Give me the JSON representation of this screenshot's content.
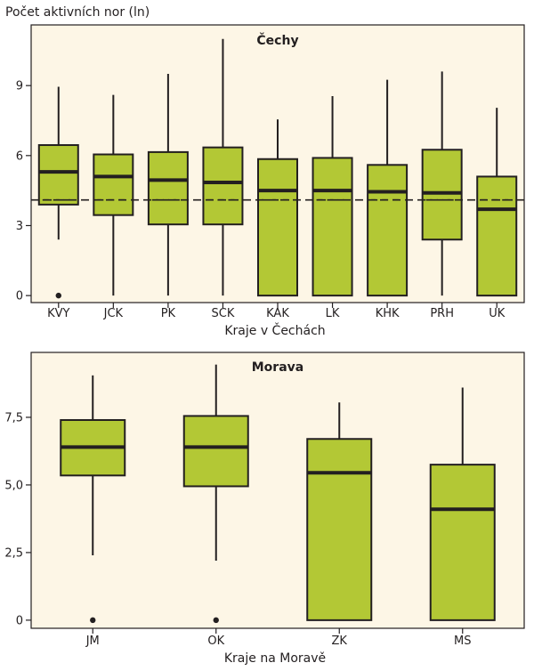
{
  "colors": {
    "panel_bg": "#fdf6e6",
    "box_fill": "#b3c835",
    "stroke": "#231f20",
    "text": "#231f20"
  },
  "chart_data": [
    {
      "type": "boxplot",
      "title": "Čechy",
      "ylabel": "Počet aktivních nor (ln)",
      "xlabel": "Kraje v Čechách",
      "ylim": [
        -0.3,
        11.6
      ],
      "yticks": [
        {
          "value": 0,
          "label": "0"
        },
        {
          "value": 3,
          "label": "3"
        },
        {
          "value": 6,
          "label": "6"
        },
        {
          "value": 9,
          "label": "9"
        }
      ],
      "reference_line": 4.1,
      "categories": [
        "KVY",
        "JCK",
        "PK",
        "SCK",
        "KAK",
        "LK",
        "KHK",
        "PRH",
        "UK"
      ],
      "boxes": [
        {
          "min": 2.4,
          "q1": 3.9,
          "median": 5.3,
          "q3": 6.45,
          "max": 8.95,
          "group_mean": 4.1,
          "outliers": [
            0
          ]
        },
        {
          "min": 0,
          "q1": 3.45,
          "median": 5.1,
          "q3": 6.05,
          "max": 8.6,
          "group_mean": 4.1,
          "outliers": []
        },
        {
          "min": 0,
          "q1": 3.05,
          "median": 4.95,
          "q3": 6.15,
          "max": 9.5,
          "group_mean": 4.1,
          "outliers": []
        },
        {
          "min": 0,
          "q1": 3.05,
          "median": 4.85,
          "q3": 6.35,
          "max": 11.0,
          "group_mean": 4.1,
          "outliers": []
        },
        {
          "min": 0,
          "q1": 0,
          "median": 4.5,
          "q3": 5.85,
          "max": 7.55,
          "group_mean": 4.1,
          "outliers": []
        },
        {
          "min": 0,
          "q1": 0,
          "median": 4.5,
          "q3": 5.9,
          "max": 8.55,
          "group_mean": 4.1,
          "outliers": []
        },
        {
          "min": 0,
          "q1": 0,
          "median": 4.45,
          "q3": 5.6,
          "max": 9.25,
          "group_mean": 4.1,
          "outliers": []
        },
        {
          "min": 0,
          "q1": 2.4,
          "median": 4.4,
          "q3": 6.25,
          "max": 9.6,
          "group_mean": 4.1,
          "outliers": []
        },
        {
          "min": 0,
          "q1": 0,
          "median": 3.7,
          "q3": 5.1,
          "max": 8.05,
          "group_mean": 4.1,
          "outliers": []
        }
      ]
    },
    {
      "type": "boxplot",
      "title": "Morava",
      "xlabel": "Kraje na Moravě",
      "ylim": [
        -0.3,
        9.9
      ],
      "yticks": [
        {
          "value": 0,
          "label": "0"
        },
        {
          "value": 2.5,
          "label": "2,5"
        },
        {
          "value": 5.0,
          "label": "5,0"
        },
        {
          "value": 7.5,
          "label": "7,5"
        }
      ],
      "categories": [
        "JM",
        "OK",
        "ZK",
        "MS"
      ],
      "boxes": [
        {
          "min": 2.4,
          "q1": 5.35,
          "median": 6.4,
          "q3": 7.4,
          "max": 9.05,
          "outliers": [
            0
          ]
        },
        {
          "min": 2.2,
          "q1": 4.95,
          "median": 6.4,
          "q3": 7.55,
          "max": 9.45,
          "outliers": [
            0
          ]
        },
        {
          "min": 0,
          "q1": 0,
          "median": 5.45,
          "q3": 6.7,
          "max": 8.05,
          "outliers": []
        },
        {
          "min": 0,
          "q1": 0,
          "median": 4.1,
          "q3": 5.75,
          "max": 8.6,
          "outliers": []
        }
      ]
    }
  ]
}
